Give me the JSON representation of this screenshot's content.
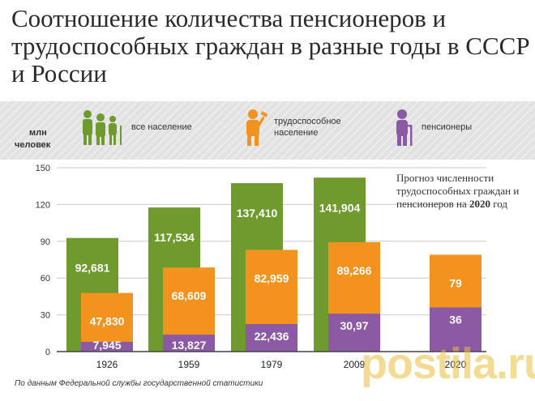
{
  "title": "Соотношение количества пенсионеров и трудоспособных граждан в разные годы в СССР и России",
  "unit_line1": "млн",
  "unit_line2": "человек",
  "legend": [
    {
      "label": "все население",
      "color": "#6f9a2d",
      "icon": "family-icon"
    },
    {
      "label": "трудоспособное население",
      "color": "#f2931f",
      "icon": "worker-icon"
    },
    {
      "label": "пенсионеры",
      "color": "#8c5aa5",
      "icon": "elderly-icon"
    }
  ],
  "annotation": {
    "text_before": "Прогноз численности трудоспособных граждан и пенсионеров на ",
    "year": "2020",
    "text_after": " год"
  },
  "source": "По данным Федеральной службы государственной статистики",
  "watermark": "postila.ru",
  "chart_data": {
    "type": "bar",
    "categories": [
      "1926",
      "1959",
      "1979",
      "2009",
      "2020"
    ],
    "ylim": [
      0,
      150
    ],
    "yticks": [
      0,
      30,
      60,
      90,
      120,
      150
    ],
    "series": [
      {
        "name": "все население",
        "values": [
          92.681,
          117.534,
          137.41,
          141.904,
          null
        ],
        "labels": [
          "92,681",
          "117,534",
          "137,410",
          "141,904",
          ""
        ],
        "color": "#6f9a2d"
      },
      {
        "name": "трудоспособное население",
        "values": [
          47.83,
          68.609,
          82.959,
          89.266,
          79
        ],
        "labels": [
          "47,830",
          "68,609",
          "82,959",
          "89,266",
          "79"
        ],
        "color": "#f2931f"
      },
      {
        "name": "пенсионеры",
        "values": [
          7.945,
          13.827,
          22.436,
          30.97,
          36
        ],
        "labels": [
          "7,945",
          "13,827",
          "22,436",
          "30,97",
          "36"
        ],
        "color": "#8c5aa5"
      }
    ]
  }
}
